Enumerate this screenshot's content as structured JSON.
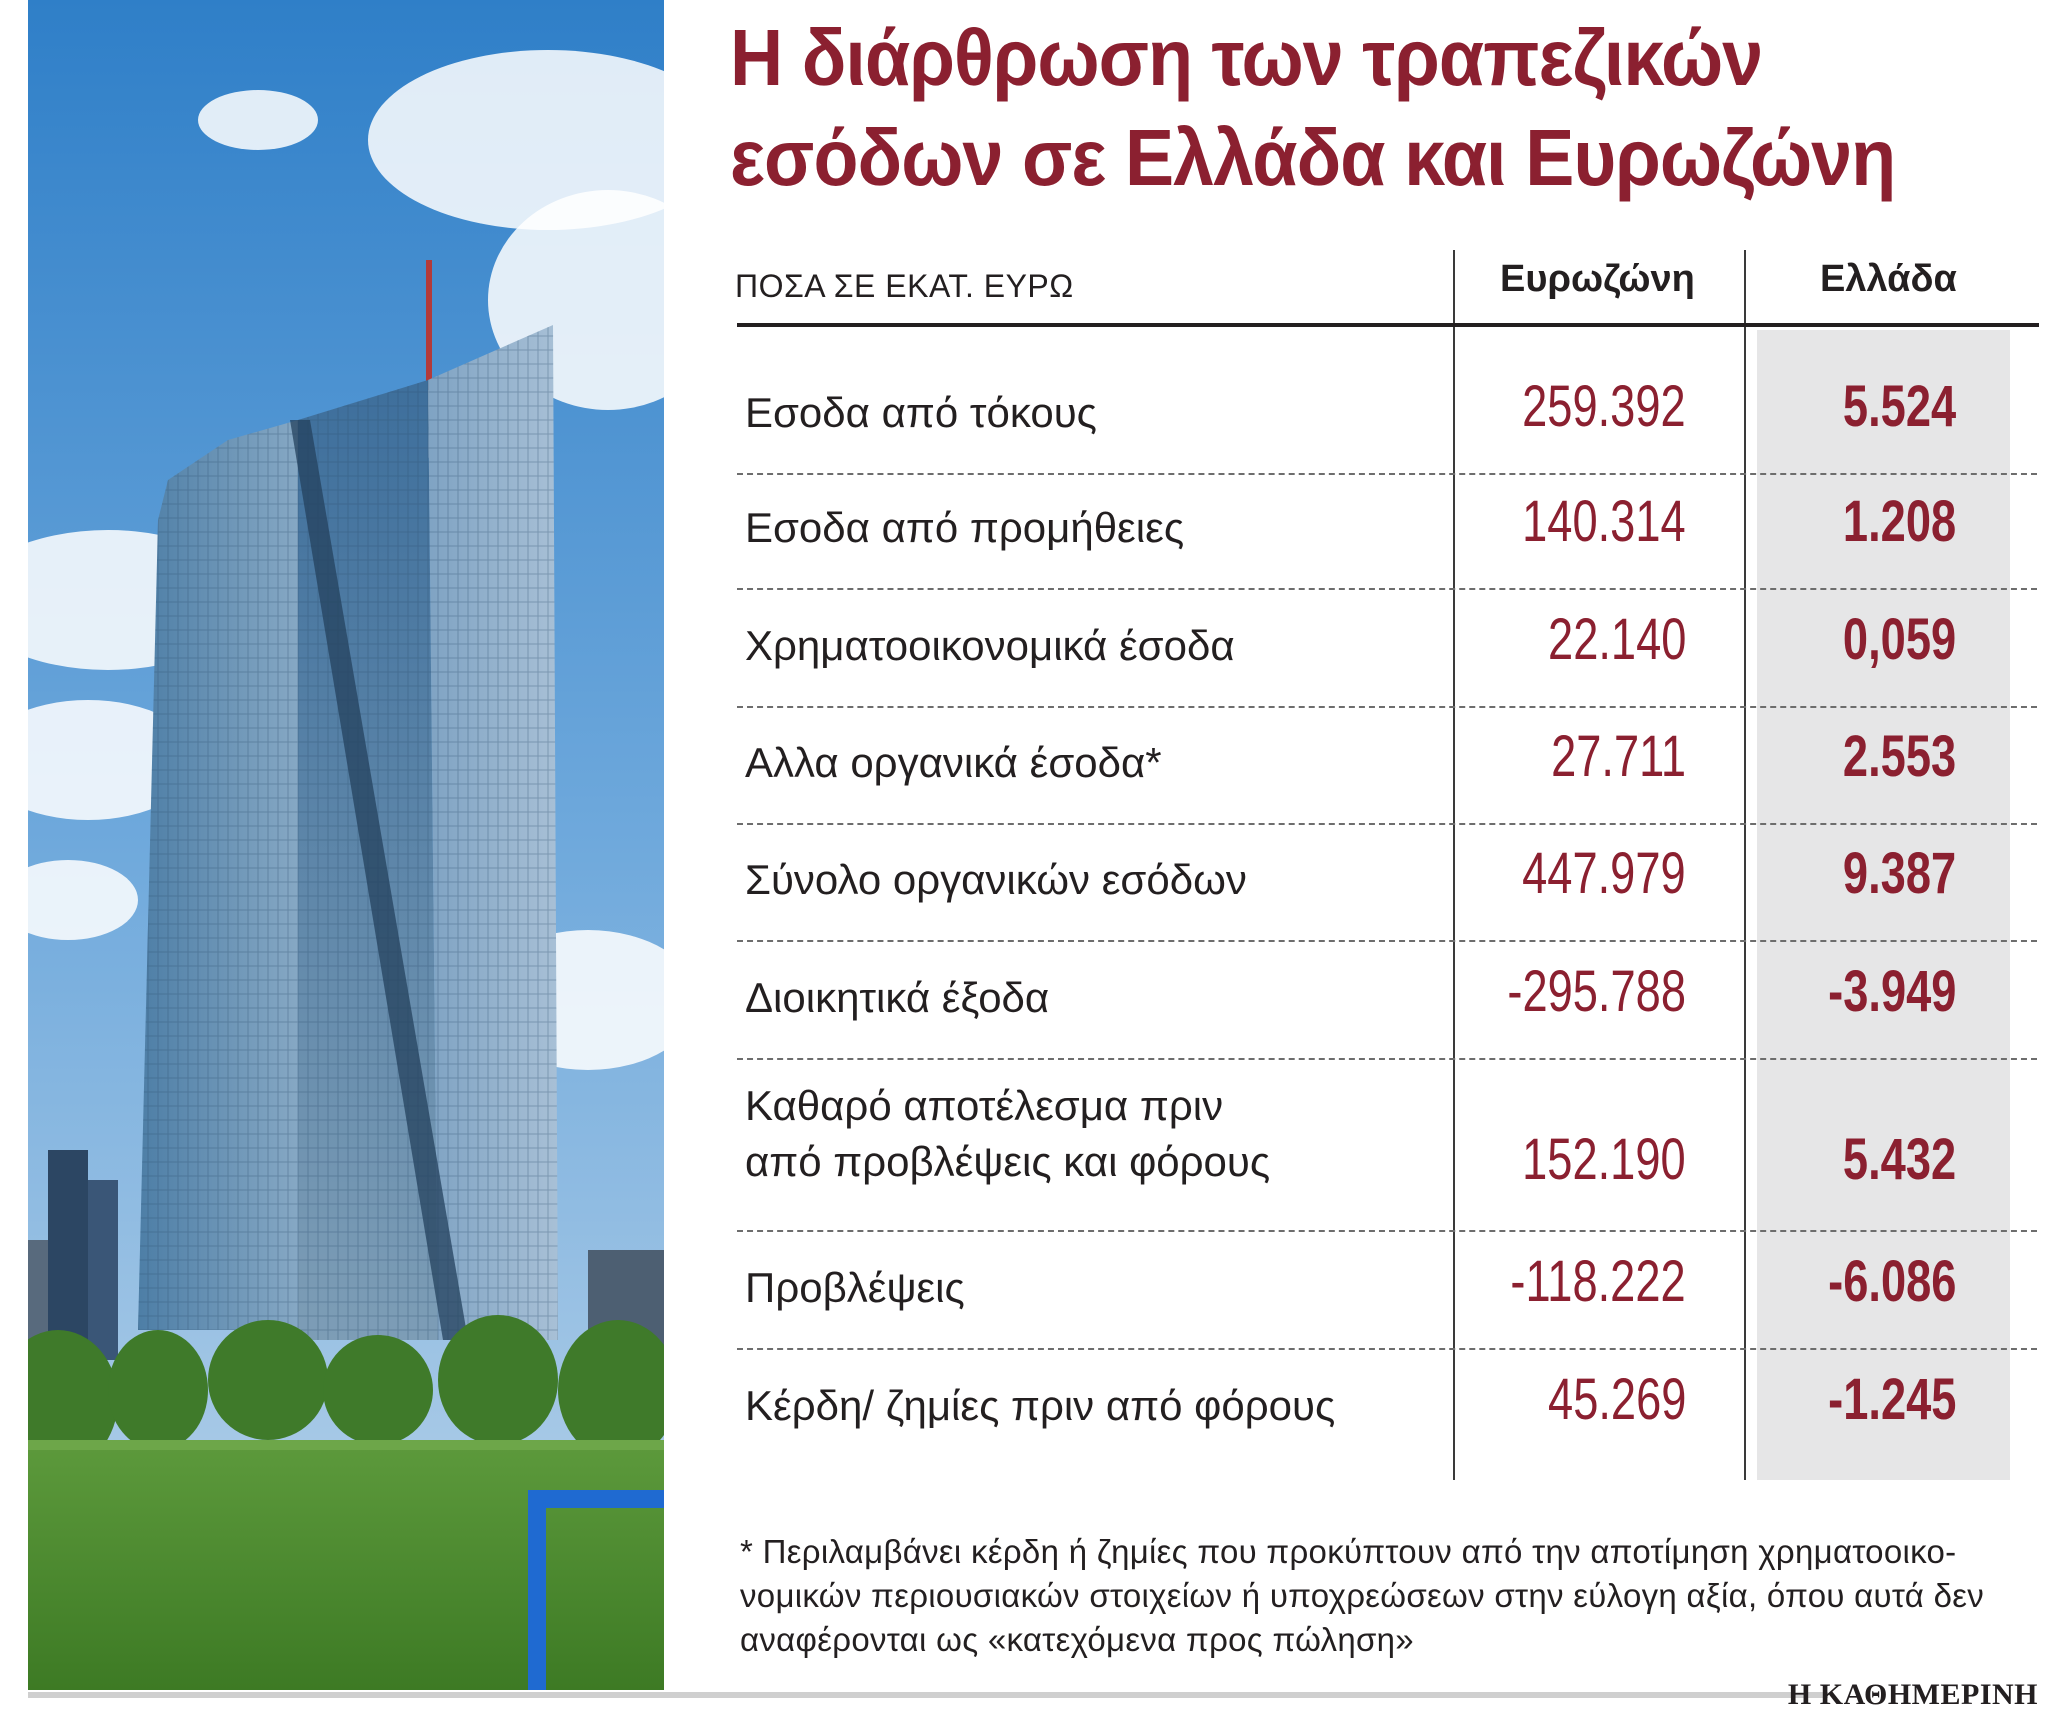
{
  "title": {
    "line1": "Η διάρθρωση των τραπεζικών",
    "line2": "εσόδων σε Ελλάδα και Ευρωζώνη"
  },
  "table": {
    "unit_label": "ΠΟΣΑ ΣΕ ΕΚΑΤ. ΕΥΡΩ",
    "col_eurozone": "Ευρωζώνη",
    "col_greece": "Ελλάδα",
    "rows": [
      {
        "label": "Εσοδα από τόκους",
        "eurozone": "259.392",
        "greece": "5.524"
      },
      {
        "label": "Εσοδα από προμήθειες",
        "eurozone": "140.314",
        "greece": "1.208"
      },
      {
        "label": "Χρηματοοικονομικά έσοδα",
        "eurozone": "22.140",
        "greece": "0,059"
      },
      {
        "label": "Αλλα οργανικά έσοδα*",
        "eurozone": "27.711",
        "greece": "2.553"
      },
      {
        "label": "Σύνολο οργανικών εσόδων",
        "eurozone": "447.979",
        "greece": "9.387"
      },
      {
        "label": "Διοικητικά έξοδα",
        "eurozone": "-295.788",
        "greece": "-3.949"
      },
      {
        "label": "Καθαρό αποτέλεσμα πριν\nαπό προβλέψεις και φόρους",
        "eurozone": "152.190",
        "greece": "5.432"
      },
      {
        "label": "Προβλέψεις",
        "eurozone": "-118.222",
        "greece": "-6.086"
      },
      {
        "label": "Κέρδη/ ζημίες πριν από φόρους",
        "eurozone": "45.269",
        "greece": "-1.245"
      }
    ]
  },
  "chart_data": {
    "type": "table",
    "title": "Η διάρθρωση των τραπεζικών εσόδων σε Ελλάδα και Ευρωζώνη",
    "unit": "ΠΟΣΑ ΣΕ ΕΚΑΤ. ΕΥΡΩ",
    "columns": [
      "Ευρωζώνη",
      "Ελλάδα"
    ],
    "categories": [
      "Εσοδα από τόκους",
      "Εσοδα από προμήθειες",
      "Χρηματοοικονομικά έσοδα",
      "Αλλα οργανικά έσοδα*",
      "Σύνολο οργανικών εσόδων",
      "Διοικητικά έξοδα",
      "Καθαρό αποτέλεσμα πριν από προβλέψεις και φόρους",
      "Προβλέψεις",
      "Κέρδη/ ζημίες πριν από φόρους"
    ],
    "series": [
      {
        "name": "Ευρωζώνη",
        "values": [
          259392,
          140314,
          22140,
          27711,
          447979,
          -295788,
          152190,
          -118222,
          45269
        ]
      },
      {
        "name": "Ελλάδα",
        "values": [
          5524,
          1208,
          0.059,
          2553,
          9387,
          -3949,
          5432,
          -6086,
          -1245
        ]
      }
    ]
  },
  "note": "* Περιλαμβάνει κέρδη ή ζημίες που προκύπτουν από την αποτίμηση χρηματοοικο-νομικών περιουσιακών στοιχείων ή υποχρεώσεων στην εύλογη αξία, όπου αυτά δεν αναφέρονται ως «κατεχόμενα προς πώληση»",
  "brand": "Η ΚΑΘΗΜΕΡΙΝΗ",
  "colors": {
    "accent": "#8b2030",
    "greece_column_bg": "#e6e6e7",
    "text": "#231f20"
  }
}
